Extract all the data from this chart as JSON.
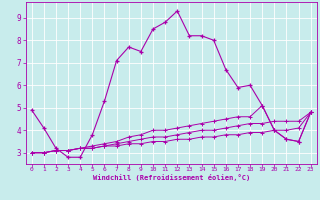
{
  "title": "",
  "xlabel": "Windchill (Refroidissement éolien,°C)",
  "ylabel": "",
  "bg_color": "#c8ecec",
  "line_color": "#aa00aa",
  "grid_color": "#ffffff",
  "xlim": [
    -0.5,
    23.5
  ],
  "ylim": [
    2.5,
    9.7
  ],
  "yticks": [
    3,
    4,
    5,
    6,
    7,
    8,
    9
  ],
  "xticks": [
    0,
    1,
    2,
    3,
    4,
    5,
    6,
    7,
    8,
    9,
    10,
    11,
    12,
    13,
    14,
    15,
    16,
    17,
    18,
    19,
    20,
    21,
    22,
    23
  ],
  "line1_x": [
    0,
    1,
    2,
    3,
    4,
    5,
    6,
    7,
    8,
    9,
    10,
    11,
    12,
    13,
    14,
    15,
    16,
    17,
    18,
    19,
    20,
    21,
    22,
    23
  ],
  "line1_y": [
    4.9,
    4.1,
    3.2,
    2.8,
    2.8,
    3.8,
    5.3,
    7.1,
    7.7,
    7.5,
    8.5,
    8.8,
    9.3,
    8.2,
    8.2,
    8.0,
    6.7,
    5.9,
    6.0,
    5.1,
    4.0,
    3.6,
    3.5,
    4.8
  ],
  "line2_x": [
    0,
    1,
    2,
    3,
    4,
    5,
    6,
    7,
    8,
    9,
    10,
    11,
    12,
    13,
    14,
    15,
    16,
    17,
    18,
    19,
    20,
    21,
    22,
    23
  ],
  "line2_y": [
    3.0,
    3.0,
    3.1,
    3.1,
    3.2,
    3.2,
    3.3,
    3.3,
    3.4,
    3.4,
    3.5,
    3.5,
    3.6,
    3.6,
    3.7,
    3.7,
    3.8,
    3.8,
    3.9,
    3.9,
    4.0,
    4.0,
    4.1,
    4.8
  ],
  "line3_x": [
    0,
    1,
    2,
    3,
    4,
    5,
    6,
    7,
    8,
    9,
    10,
    11,
    12,
    13,
    14,
    15,
    16,
    17,
    18,
    19,
    20,
    21,
    22,
    23
  ],
  "line3_y": [
    3.0,
    3.0,
    3.1,
    3.1,
    3.2,
    3.2,
    3.3,
    3.4,
    3.5,
    3.6,
    3.7,
    3.7,
    3.8,
    3.9,
    4.0,
    4.0,
    4.1,
    4.2,
    4.3,
    4.3,
    4.4,
    4.4,
    4.4,
    4.8
  ],
  "line4_x": [
    0,
    1,
    2,
    3,
    4,
    5,
    6,
    7,
    8,
    9,
    10,
    11,
    12,
    13,
    14,
    15,
    16,
    17,
    18,
    19,
    20,
    21,
    22,
    23
  ],
  "line4_y": [
    3.0,
    3.0,
    3.1,
    3.1,
    3.2,
    3.3,
    3.4,
    3.5,
    3.7,
    3.8,
    4.0,
    4.0,
    4.1,
    4.2,
    4.3,
    4.4,
    4.5,
    4.6,
    4.6,
    5.1,
    4.0,
    3.6,
    3.5,
    4.8
  ]
}
